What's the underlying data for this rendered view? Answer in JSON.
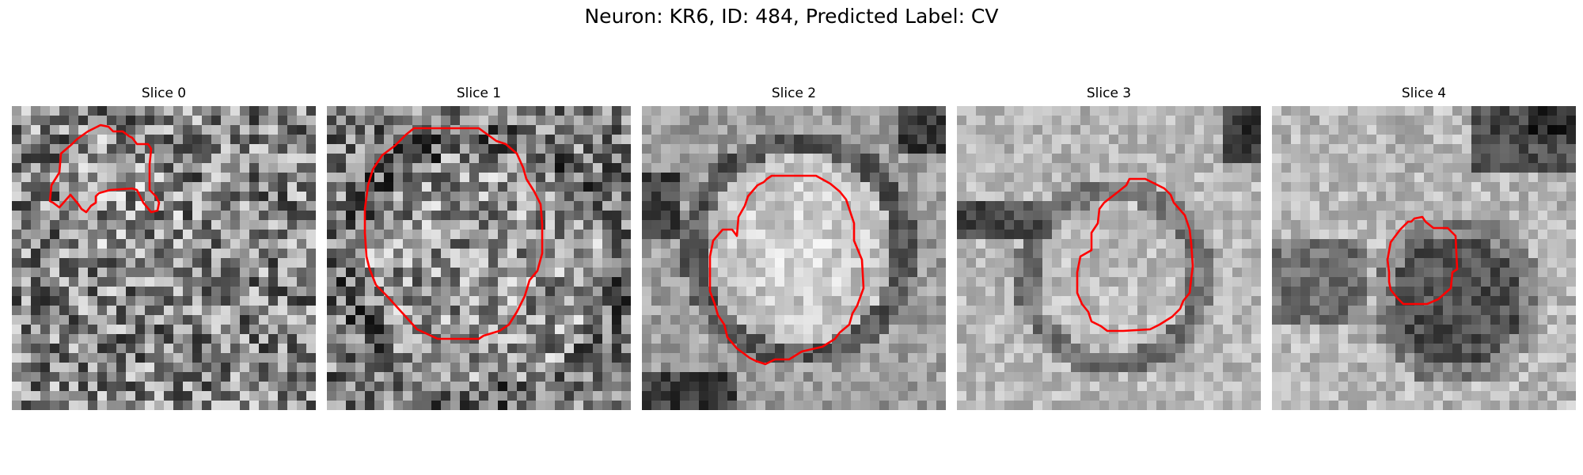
{
  "figure": {
    "title": "Neuron: KR6, ID: 484, Predicted Label: CV"
  },
  "panels": [
    {
      "title": "Slice 0",
      "content": "noisy grayscale texture, contour top-left irregular shape"
    },
    {
      "title": "Slice 1",
      "content": "noisy grayscale texture, large octagonal contour"
    },
    {
      "title": "Slice 2",
      "content": "bright round cell with dark rim, octagonal contour"
    },
    {
      "title": "Slice 3",
      "content": "mid-bright round cell, octagonal contour lower-center"
    },
    {
      "title": "Slice 4",
      "content": "dark cell region, small octagonal contour lower-right"
    }
  ],
  "colors": {
    "contour": "#ff0000"
  }
}
